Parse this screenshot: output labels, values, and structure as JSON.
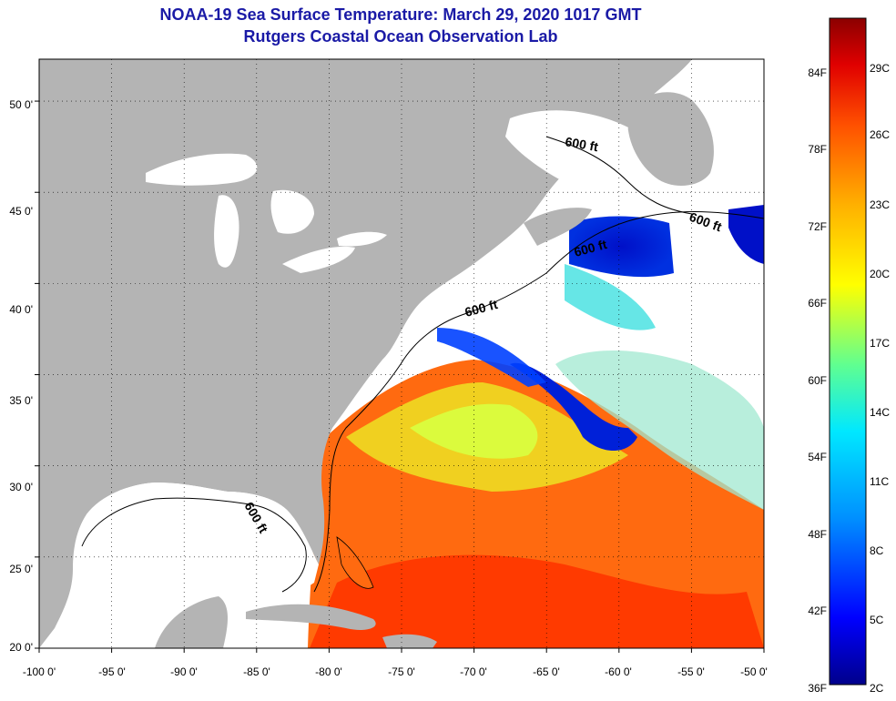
{
  "title_line1": "NOAA-19 Sea Surface Temperature:  March 29, 2020 1017 GMT",
  "title_line2": "Rutgers Coastal Ocean Observation Lab",
  "map": {
    "lon_range": [
      -100,
      -50
    ],
    "lat_range": [
      20,
      52.3
    ],
    "land_color": "#b4b4b4",
    "cloud_color": "#ffffff",
    "gridlines": "dotted"
  },
  "lat_labels": [
    "50 0'",
    "45 0'",
    "40 0'",
    "35 0'",
    "30 0'",
    "25 0'",
    "20 0'"
  ],
  "lon_labels": [
    "-100 0'",
    "-95 0'",
    "-90 0'",
    "-85 0'",
    "-80 0'",
    "-75 0'",
    "-70 0'",
    "-65 0'",
    "-60 0'",
    "-55 0'",
    "-50 0'"
  ],
  "isobath_label": "600 ft",
  "colorbar": {
    "fahrenheit_labels": [
      "84F",
      "78F",
      "72F",
      "66F",
      "60F",
      "54F",
      "48F",
      "42F",
      "36F"
    ],
    "celsius_labels": [
      "29C",
      "26C",
      "23C",
      "20C",
      "17C",
      "14C",
      "11C",
      "8C",
      "5C",
      "2C"
    ],
    "colors": [
      "#00008b",
      "#0000ff",
      "#0080ff",
      "#00e0ff",
      "#40ffb0",
      "#c0ff40",
      "#ffff00",
      "#ffb000",
      "#ff6000",
      "#ff0000",
      "#8b0000"
    ]
  }
}
